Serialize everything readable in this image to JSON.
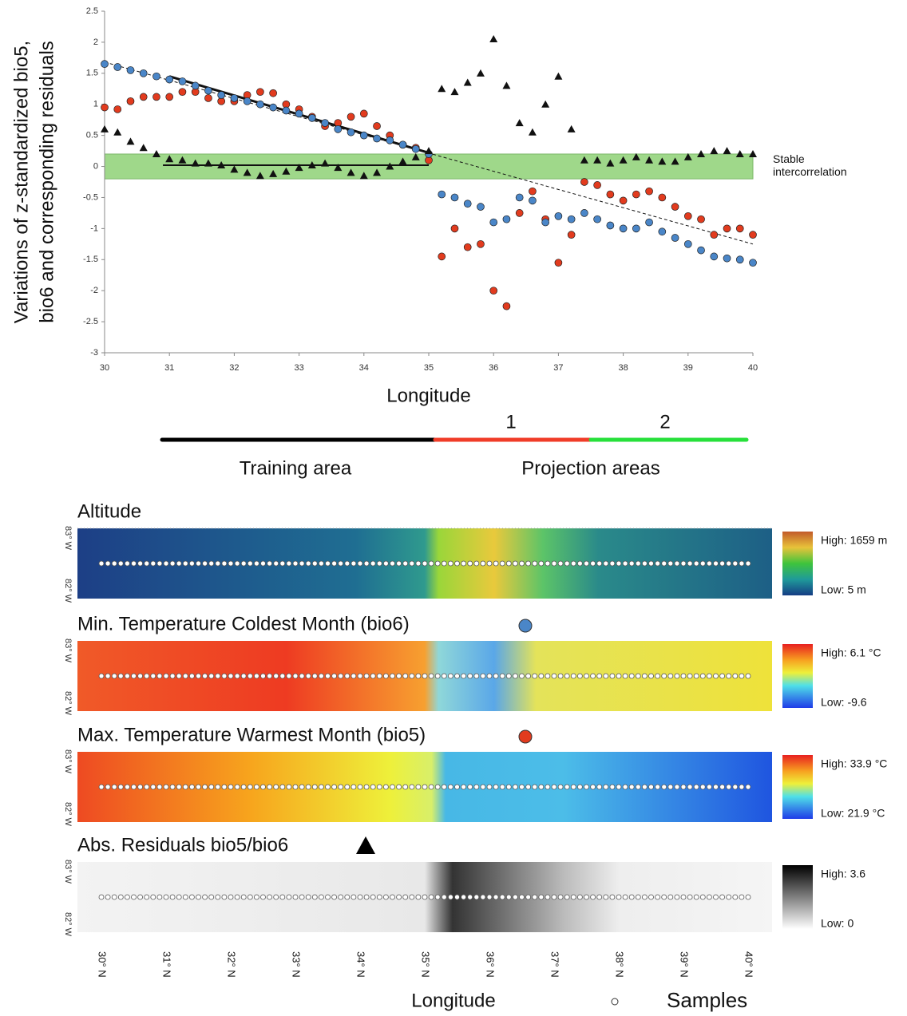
{
  "chart_data": {
    "type": "scatter",
    "ylabel": [
      "Variations of z-standardized bio5,",
      "bio6 and corresponding residuals"
    ],
    "xlabel": "Longitude",
    "xlim": [
      30,
      40
    ],
    "xticks": [
      30,
      31,
      32,
      33,
      34,
      35,
      36,
      37,
      38,
      39,
      40
    ],
    "ylim": [
      -3,
      2.5
    ],
    "yticks": [
      2.5,
      2,
      1.5,
      1,
      0.5,
      0,
      -0.5,
      -1,
      -1.5,
      -2,
      -2.5,
      -3
    ],
    "x": [
      30,
      30.2,
      30.4,
      30.6,
      30.8,
      31,
      31.2,
      31.4,
      31.6,
      31.8,
      32,
      32.2,
      32.4,
      32.6,
      32.8,
      33,
      33.2,
      33.4,
      33.6,
      33.8,
      34,
      34.2,
      34.4,
      34.6,
      34.8,
      35,
      35.2,
      35.4,
      35.6,
      35.8,
      36,
      36.2,
      36.4,
      36.6,
      36.8,
      37,
      37.2,
      37.4,
      37.6,
      37.8,
      38,
      38.2,
      38.4,
      38.6,
      38.8,
      39,
      39.2,
      39.4,
      39.6,
      39.8,
      40
    ],
    "series": [
      {
        "color": "#e23b1e",
        "marker": "circle",
        "values": [
          0.95,
          0.92,
          1.05,
          1.12,
          1.12,
          1.12,
          1.2,
          1.2,
          1.1,
          1.05,
          1.05,
          1.15,
          1.2,
          1.18,
          1.0,
          0.92,
          0.8,
          0.65,
          0.7,
          0.8,
          0.85,
          0.65,
          0.5,
          0.35,
          0.3,
          0.1,
          -1.45,
          -1.0,
          -1.3,
          -1.25,
          -2.0,
          -2.25,
          -0.75,
          -0.4,
          -0.85,
          -1.55,
          -1.1,
          -0.25,
          -0.3,
          -0.45,
          -0.55,
          -0.45,
          -0.4,
          -0.5,
          -0.65,
          -0.8,
          -0.85,
          -1.1,
          -1.0,
          -1.0,
          -1.1
        ]
      },
      {
        "color": "#4a86c8",
        "marker": "circle",
        "values": [
          1.65,
          1.6,
          1.55,
          1.5,
          1.45,
          1.4,
          1.37,
          1.3,
          1.22,
          1.15,
          1.1,
          1.05,
          1.0,
          0.95,
          0.9,
          0.85,
          0.78,
          0.7,
          0.6,
          0.55,
          0.5,
          0.45,
          0.42,
          0.35,
          0.28,
          0.2,
          -0.45,
          -0.5,
          -0.6,
          -0.65,
          -0.9,
          -0.85,
          -0.5,
          -0.55,
          -0.9,
          -0.8,
          -0.85,
          -0.75,
          -0.85,
          -0.95,
          -1.0,
          -1.0,
          -0.9,
          -1.05,
          -1.15,
          -1.25,
          -1.35,
          -1.45,
          -1.48,
          -1.5,
          -1.55
        ]
      },
      {
        "color": "#111111",
        "marker": "triangle",
        "values": [
          0.6,
          0.55,
          0.4,
          0.3,
          0.2,
          0.12,
          0.1,
          0.05,
          0.05,
          0.02,
          -0.05,
          -0.1,
          -0.15,
          -0.12,
          -0.08,
          -0.02,
          0.02,
          0.05,
          -0.02,
          -0.1,
          -0.15,
          -0.1,
          0,
          0.08,
          0.15,
          0.25,
          1.25,
          1.2,
          1.35,
          1.5,
          2.05,
          1.3,
          0.7,
          0.55,
          1.0,
          1.45,
          0.6,
          0.1,
          0.1,
          0.05,
          0.1,
          0.15,
          0.1,
          0.08,
          0.08,
          0.15,
          0.2,
          0.25,
          0.25,
          0.2,
          0.2
        ]
      }
    ],
    "band": {
      "range": [
        -0.2,
        0.2
      ],
      "color": "#9fd88a",
      "label": [
        "Stable",
        "intercorrelation"
      ]
    },
    "lines": [
      {
        "style": "dashed",
        "x": [
          30,
          40
        ],
        "y": [
          1.68,
          -1.25
        ]
      },
      {
        "style": "solid",
        "x": [
          31,
          35
        ],
        "y": [
          1.45,
          0.22
        ]
      },
      {
        "style": "solid",
        "x": [
          30.9,
          35
        ],
        "y": [
          0.02,
          0.02
        ]
      }
    ]
  },
  "regions": {
    "training": "Training area",
    "projection": "Projection areas",
    "segments": [
      "1",
      "2"
    ]
  },
  "maps": {
    "panels": [
      {
        "title": "Altitude",
        "high": "High: 1659 m",
        "low": "Low: 5 m"
      },
      {
        "title": "Min. Temperature Coldest Month (bio6)",
        "high": "High: 6.1 °C",
        "low": "Low: -9.6"
      },
      {
        "title": "Max. Temperature Warmest Month (bio5)",
        "high": "High: 33.9 °C",
        "low": "Low: 21.9 °C"
      },
      {
        "title": "Abs. Residuals bio5/bio6",
        "high": "High:  3.6",
        "low": "Low: 0"
      }
    ],
    "lat_labels": [
      "83° W",
      "82° W"
    ],
    "lon_labels": [
      "30° N",
      "31° N",
      "32° N",
      "33° N",
      "34° N",
      "35° N",
      "36° N",
      "37° N",
      "38° N",
      "39° N",
      "40° N"
    ],
    "xlabel": "Longitude",
    "samples": "Samples"
  }
}
